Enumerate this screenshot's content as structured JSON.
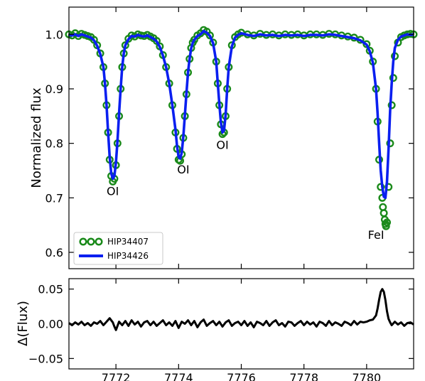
{
  "chart_data": [
    {
      "type": "line",
      "xlabel": "",
      "ylabel": "Normalized flux",
      "xlim": [
        7770.5,
        7781.5
      ],
      "ylim": [
        0.57,
        1.05
      ],
      "yticks": [
        0.6,
        0.7,
        0.8,
        0.9,
        1.0
      ],
      "ytick_labels": [
        "0.6",
        "0.7",
        "0.8",
        "0.9",
        "1.0"
      ],
      "annotations": [
        {
          "text": "OI",
          "x": 7771.9,
          "y": 0.705
        },
        {
          "text": "OI",
          "x": 7774.15,
          "y": 0.745
        },
        {
          "text": "OI",
          "x": 7775.4,
          "y": 0.79
        },
        {
          "text": "FeI",
          "x": 7780.3,
          "y": 0.625
        }
      ],
      "legend": {
        "location": "lower-left",
        "entries": [
          "HIP34407",
          "HIP34426"
        ]
      },
      "series": [
        {
          "name": "HIP34407",
          "style": "open-circles",
          "color": "#1a8a1a",
          "x": [
            7770.5,
            7770.6,
            7770.7,
            7770.8,
            7770.9,
            7771.0,
            7771.1,
            7771.2,
            7771.3,
            7771.4,
            7771.5,
            7771.6,
            7771.65,
            7771.7,
            7771.75,
            7771.8,
            7771.85,
            7771.9,
            7771.95,
            7772.0,
            7772.05,
            7772.1,
            7772.15,
            7772.2,
            7772.25,
            7772.3,
            7772.4,
            7772.5,
            7772.6,
            7772.7,
            7772.8,
            7772.9,
            7773.0,
            7773.1,
            7773.2,
            7773.3,
            7773.4,
            7773.5,
            7773.6,
            7773.7,
            7773.8,
            7773.9,
            7773.95,
            7774.0,
            7774.05,
            7774.1,
            7774.15,
            7774.2,
            7774.25,
            7774.3,
            7774.35,
            7774.4,
            7774.45,
            7774.5,
            7774.6,
            7774.7,
            7774.8,
            7774.9,
            7775.0,
            7775.1,
            7775.2,
            7775.25,
            7775.3,
            7775.35,
            7775.4,
            7775.45,
            7775.5,
            7775.55,
            7775.6,
            7775.7,
            7775.8,
            7775.9,
            7776.0,
            7776.2,
            7776.4,
            7776.6,
            7776.8,
            7777.0,
            7777.2,
            7777.4,
            7777.6,
            7777.8,
            7778.0,
            7778.2,
            7778.4,
            7778.6,
            7778.8,
            7779.0,
            7779.2,
            7779.4,
            7779.6,
            7779.8,
            7780.0,
            7780.1,
            7780.2,
            7780.3,
            7780.35,
            7780.4,
            7780.45,
            7780.5,
            7780.52,
            7780.55,
            7780.58,
            7780.6,
            7780.62,
            7780.65,
            7780.7,
            7780.75,
            7780.8,
            7780.85,
            7780.9,
            7781.0,
            7781.1,
            7781.2,
            7781.3,
            7781.4,
            7781.5
          ],
          "y": [
            1.0,
            0.998,
            1.002,
            0.997,
            1.001,
            0.999,
            0.997,
            0.995,
            0.99,
            0.98,
            0.965,
            0.94,
            0.91,
            0.87,
            0.82,
            0.77,
            0.74,
            0.73,
            0.735,
            0.76,
            0.8,
            0.85,
            0.9,
            0.94,
            0.965,
            0.98,
            0.992,
            0.998,
            0.996,
            1.0,
            0.998,
            0.997,
            0.999,
            0.996,
            0.993,
            0.988,
            0.978,
            0.962,
            0.94,
            0.91,
            0.87,
            0.82,
            0.79,
            0.77,
            0.768,
            0.78,
            0.81,
            0.85,
            0.89,
            0.93,
            0.955,
            0.975,
            0.985,
            0.99,
            0.998,
            1.002,
            1.008,
            1.005,
            0.998,
            0.985,
            0.95,
            0.91,
            0.87,
            0.835,
            0.817,
            0.82,
            0.85,
            0.9,
            0.94,
            0.98,
            0.995,
            1.0,
            1.003,
            1.0,
            0.998,
            1.001,
            0.999,
            1.0,
            0.998,
            1.0,
            0.999,
            1.0,
            0.998,
            1.0,
            1.0,
            0.999,
            1.001,
            1.0,
            0.998,
            0.996,
            0.994,
            0.99,
            0.982,
            0.97,
            0.95,
            0.9,
            0.84,
            0.77,
            0.72,
            0.7,
            0.683,
            0.672,
            0.66,
            0.652,
            0.648,
            0.655,
            0.72,
            0.8,
            0.87,
            0.92,
            0.96,
            0.985,
            0.995,
            0.998,
            1.0,
            1.001,
            1.0
          ]
        },
        {
          "name": "HIP34426",
          "style": "line",
          "color": "#0a1ff0",
          "x": [
            7770.5,
            7770.6,
            7770.7,
            7770.8,
            7770.9,
            7771.0,
            7771.1,
            7771.2,
            7771.3,
            7771.4,
            7771.5,
            7771.6,
            7771.65,
            7771.7,
            7771.75,
            7771.8,
            7771.85,
            7771.9,
            7771.95,
            7772.0,
            7772.05,
            7772.1,
            7772.15,
            7772.2,
            7772.25,
            7772.3,
            7772.4,
            7772.5,
            7772.6,
            7772.7,
            7772.8,
            7772.9,
            7773.0,
            7773.1,
            7773.2,
            7773.3,
            7773.4,
            7773.5,
            7773.6,
            7773.7,
            7773.8,
            7773.9,
            7773.95,
            7774.0,
            7774.05,
            7774.1,
            7774.15,
            7774.2,
            7774.25,
            7774.3,
            7774.35,
            7774.4,
            7774.45,
            7774.5,
            7774.6,
            7774.7,
            7774.8,
            7774.9,
            7775.0,
            7775.1,
            7775.2,
            7775.25,
            7775.3,
            7775.35,
            7775.4,
            7775.45,
            7775.5,
            7775.55,
            7775.6,
            7775.7,
            7775.8,
            7775.9,
            7776.0,
            7776.2,
            7776.4,
            7776.6,
            7776.8,
            7777.0,
            7777.2,
            7777.4,
            7777.6,
            7777.8,
            7778.0,
            7778.2,
            7778.4,
            7778.6,
            7778.8,
            7779.0,
            7779.2,
            7779.4,
            7779.6,
            7779.8,
            7780.0,
            7780.1,
            7780.2,
            7780.3,
            7780.35,
            7780.4,
            7780.45,
            7780.5,
            7780.55,
            7780.6,
            7780.65,
            7780.7,
            7780.75,
            7780.8,
            7780.85,
            7780.9,
            7781.0,
            7781.1,
            7781.2,
            7781.3,
            7781.4,
            7781.5
          ],
          "y": [
            0.999,
            0.998,
            1.0,
            0.997,
            1.0,
            0.998,
            0.996,
            0.994,
            0.989,
            0.979,
            0.964,
            0.94,
            0.91,
            0.87,
            0.82,
            0.775,
            0.745,
            0.735,
            0.74,
            0.765,
            0.805,
            0.855,
            0.9,
            0.94,
            0.965,
            0.98,
            0.991,
            0.997,
            0.996,
            0.999,
            0.997,
            0.996,
            0.998,
            0.995,
            0.992,
            0.987,
            0.977,
            0.961,
            0.94,
            0.91,
            0.87,
            0.825,
            0.795,
            0.775,
            0.772,
            0.783,
            0.812,
            0.852,
            0.892,
            0.93,
            0.955,
            0.974,
            0.984,
            0.99,
            0.997,
            1.0,
            1.006,
            1.003,
            0.997,
            0.984,
            0.95,
            0.91,
            0.872,
            0.838,
            0.82,
            0.824,
            0.852,
            0.9,
            0.94,
            0.978,
            0.994,
            0.999,
            1.002,
            0.999,
            0.997,
            1.0,
            0.998,
            0.999,
            0.997,
            0.999,
            0.998,
            0.999,
            0.997,
            0.999,
            0.999,
            0.998,
            1.0,
            0.999,
            0.997,
            0.995,
            0.993,
            0.989,
            0.981,
            0.969,
            0.948,
            0.9,
            0.855,
            0.8,
            0.75,
            0.72,
            0.702,
            0.7,
            0.73,
            0.79,
            0.86,
            0.91,
            0.95,
            0.975,
            0.99,
            0.996,
            0.998,
            1.0,
            0.999,
            1.0
          ]
        }
      ]
    },
    {
      "type": "line",
      "xlabel": "",
      "ylabel": "Δ(Flux)",
      "xlim": [
        7770.5,
        7781.5
      ],
      "ylim": [
        -0.065,
        0.065
      ],
      "xticks": [
        7772,
        7774,
        7776,
        7778,
        7780
      ],
      "xtick_labels": [
        "7772",
        "7774",
        "7776",
        "7778",
        "7780"
      ],
      "yticks": [
        -0.05,
        0.0,
        0.05
      ],
      "ytick_labels": [
        "−0.05",
        "0.00",
        "0.05"
      ],
      "series": [
        {
          "color": "#000000",
          "x": [
            7770.5,
            7770.6,
            7770.7,
            7770.8,
            7770.9,
            7771.0,
            7771.1,
            7771.2,
            7771.3,
            7771.4,
            7771.5,
            7771.6,
            7771.7,
            7771.8,
            7771.9,
            7771.95,
            7772.0,
            7772.05,
            7772.1,
            7772.2,
            7772.3,
            7772.4,
            7772.5,
            7772.6,
            7772.7,
            7772.8,
            7772.9,
            7773.0,
            7773.1,
            7773.2,
            7773.3,
            7773.4,
            7773.5,
            7773.6,
            7773.7,
            7773.8,
            7773.9,
            7774.0,
            7774.1,
            7774.2,
            7774.3,
            7774.4,
            7774.5,
            7774.6,
            7774.7,
            7774.8,
            7774.9,
            7775.0,
            7775.1,
            7775.2,
            7775.3,
            7775.4,
            7775.5,
            7775.6,
            7775.7,
            7775.8,
            7775.9,
            7776.0,
            7776.1,
            7776.2,
            7776.3,
            7776.4,
            7776.5,
            7776.6,
            7776.7,
            7776.8,
            7776.9,
            7777.0,
            7777.1,
            7777.2,
            7777.3,
            7777.4,
            7777.5,
            7777.6,
            7777.7,
            7777.8,
            7777.9,
            7778.0,
            7778.1,
            7778.2,
            7778.3,
            7778.4,
            7778.5,
            7778.6,
            7778.7,
            7778.8,
            7778.9,
            7779.0,
            7779.1,
            7779.2,
            7779.3,
            7779.4,
            7779.5,
            7779.6,
            7779.7,
            7779.8,
            7779.9,
            7780.0,
            7780.1,
            7780.2,
            7780.3,
            7780.35,
            7780.4,
            7780.45,
            7780.5,
            7780.55,
            7780.6,
            7780.65,
            7780.7,
            7780.75,
            7780.8,
            7780.9,
            7781.0,
            7781.1,
            7781.2,
            7781.3,
            7781.4,
            7781.5
          ],
          "y": [
            0.001,
            -0.002,
            0.002,
            -0.001,
            0.003,
            -0.002,
            0.001,
            -0.003,
            0.002,
            0.0,
            0.004,
            -0.002,
            0.003,
            0.008,
            0.002,
            -0.004,
            -0.009,
            -0.003,
            0.003,
            -0.002,
            0.004,
            -0.003,
            0.005,
            -0.001,
            0.003,
            -0.004,
            0.002,
            0.004,
            -0.002,
            0.003,
            -0.003,
            0.001,
            0.005,
            -0.002,
            0.002,
            -0.003,
            0.004,
            -0.006,
            0.003,
            0.0,
            0.005,
            -0.002,
            0.004,
            -0.005,
            0.002,
            0.006,
            -0.003,
            0.001,
            0.004,
            -0.002,
            0.003,
            -0.004,
            0.002,
            0.005,
            -0.003,
            0.001,
            0.003,
            -0.002,
            0.004,
            -0.003,
            0.002,
            -0.005,
            0.003,
            0.001,
            -0.002,
            0.004,
            -0.003,
            0.002,
            0.005,
            -0.002,
            0.001,
            -0.004,
            0.003,
            0.002,
            -0.003,
            0.001,
            0.004,
            -0.002,
            0.003,
            -0.001,
            0.002,
            -0.004,
            0.003,
            0.001,
            -0.003,
            0.004,
            -0.002,
            0.002,
            0.0,
            -0.003,
            0.003,
            0.001,
            -0.002,
            0.004,
            -0.001,
            0.003,
            0.002,
            0.003,
            0.005,
            0.006,
            0.012,
            0.022,
            0.035,
            0.046,
            0.05,
            0.046,
            0.034,
            0.018,
            0.007,
            0.002,
            -0.002,
            0.003,
            -0.001,
            0.002,
            -0.003,
            0.001,
            0.002,
            -0.001
          ]
        }
      ]
    }
  ]
}
